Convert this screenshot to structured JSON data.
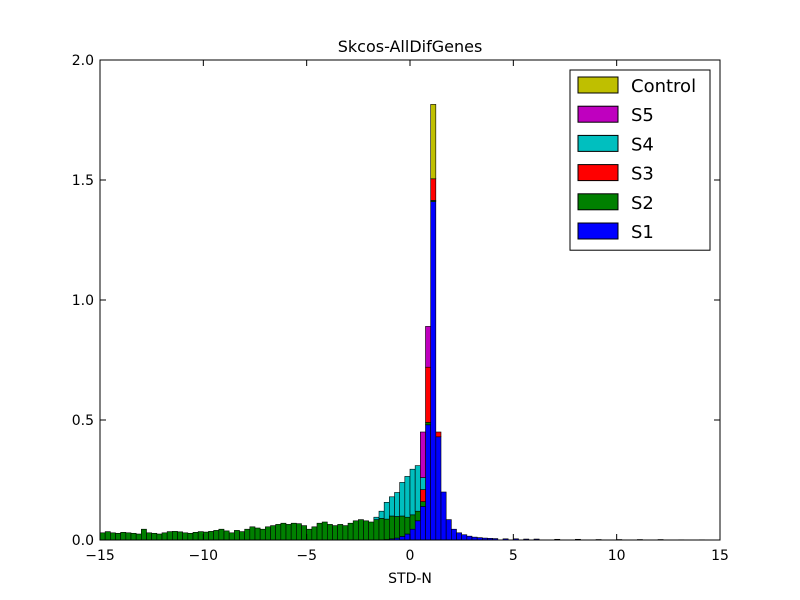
{
  "chart_data": {
    "type": "histogram",
    "title": "Skcos-AllDifGenes",
    "xlabel": "STD-N",
    "ylabel": "",
    "xlim": [
      -15,
      15
    ],
    "ylim": [
      0,
      2.0
    ],
    "x_ticks": [
      -15,
      -10,
      -5,
      0,
      5,
      10,
      15
    ],
    "x_tick_labels": [
      "−15",
      "−10",
      "−5",
      "0",
      "5",
      "10",
      "15"
    ],
    "y_ticks": [
      0,
      0.5,
      1.0,
      1.5,
      2.0
    ],
    "y_tick_labels": [
      "0.0",
      "0.5",
      "1.0",
      "1.5",
      "2.0"
    ],
    "legend_position": "top-right",
    "bin_width": 0.25,
    "series": [
      {
        "name": "S1",
        "color": "#0000ff",
        "bins": [
          [
            -1.25,
            0.002
          ],
          [
            -1.0,
            0.005
          ],
          [
            -0.75,
            0.008
          ],
          [
            -0.5,
            0.015
          ],
          [
            -0.25,
            0.025
          ],
          [
            0.0,
            0.045
          ],
          [
            0.25,
            0.08
          ],
          [
            0.5,
            0.14
          ],
          [
            0.75,
            0.48
          ],
          [
            1.0,
            1.41
          ],
          [
            1.25,
            0.43
          ],
          [
            1.5,
            0.2
          ],
          [
            1.75,
            0.085
          ],
          [
            2.0,
            0.045
          ],
          [
            2.25,
            0.03
          ],
          [
            2.5,
            0.022
          ],
          [
            2.75,
            0.016
          ],
          [
            3.0,
            0.012
          ],
          [
            3.25,
            0.01
          ],
          [
            3.5,
            0.008
          ],
          [
            3.75,
            0.007
          ],
          [
            4.0,
            0.006
          ],
          [
            4.5,
            0.005
          ],
          [
            5.0,
            0.005
          ],
          [
            5.5,
            0.004
          ],
          [
            6.0,
            0.004
          ],
          [
            7.0,
            0.003
          ],
          [
            8.0,
            0.003
          ],
          [
            9.0,
            0.002
          ],
          [
            10.0,
            0.002
          ],
          [
            11.0,
            0.002
          ],
          [
            12.0,
            0.002
          ],
          [
            13.0,
            0.001
          ],
          [
            14.0,
            0.001
          ]
        ]
      },
      {
        "name": "S2",
        "color": "#008000",
        "bins": [
          [
            -15.0,
            0.03
          ],
          [
            -14.75,
            0.035
          ],
          [
            -14.5,
            0.03
          ],
          [
            -14.25,
            0.028
          ],
          [
            -14.0,
            0.032
          ],
          [
            -13.75,
            0.03
          ],
          [
            -13.5,
            0.028
          ],
          [
            -13.25,
            0.025
          ],
          [
            -13.0,
            0.045
          ],
          [
            -12.75,
            0.03
          ],
          [
            -12.5,
            0.028
          ],
          [
            -12.25,
            0.025
          ],
          [
            -12.0,
            0.03
          ],
          [
            -11.75,
            0.035
          ],
          [
            -11.5,
            0.036
          ],
          [
            -11.25,
            0.034
          ],
          [
            -11.0,
            0.03
          ],
          [
            -10.75,
            0.028
          ],
          [
            -10.5,
            0.032
          ],
          [
            -10.25,
            0.035
          ],
          [
            -10.0,
            0.033
          ],
          [
            -9.75,
            0.036
          ],
          [
            -9.5,
            0.04
          ],
          [
            -9.25,
            0.045
          ],
          [
            -9.0,
            0.038
          ],
          [
            -8.75,
            0.03
          ],
          [
            -8.5,
            0.04
          ],
          [
            -8.25,
            0.035
          ],
          [
            -8.0,
            0.045
          ],
          [
            -7.75,
            0.055
          ],
          [
            -7.5,
            0.05
          ],
          [
            -7.25,
            0.045
          ],
          [
            -7.0,
            0.055
          ],
          [
            -6.75,
            0.06
          ],
          [
            -6.5,
            0.065
          ],
          [
            -6.25,
            0.07
          ],
          [
            -6.0,
            0.065
          ],
          [
            -5.75,
            0.07
          ],
          [
            -5.5,
            0.068
          ],
          [
            -5.25,
            0.06
          ],
          [
            -5.0,
            0.045
          ],
          [
            -4.75,
            0.055
          ],
          [
            -4.5,
            0.07
          ],
          [
            -4.25,
            0.075
          ],
          [
            -4.0,
            0.065
          ],
          [
            -3.75,
            0.06
          ],
          [
            -3.5,
            0.065
          ],
          [
            -3.25,
            0.06
          ],
          [
            -3.0,
            0.07
          ],
          [
            -2.75,
            0.08
          ],
          [
            -2.5,
            0.085
          ],
          [
            -2.25,
            0.08
          ],
          [
            -2.0,
            0.075
          ],
          [
            -1.75,
            0.085
          ],
          [
            -1.5,
            0.09
          ],
          [
            -1.25,
            0.085
          ],
          [
            -1.0,
            0.095
          ],
          [
            -0.75,
            0.09
          ],
          [
            -0.5,
            0.085
          ],
          [
            -0.25,
            0.07
          ],
          [
            0.0,
            0.06
          ],
          [
            0.25,
            0.04
          ],
          [
            0.5,
            0.02
          ],
          [
            0.75,
            0.01
          ],
          [
            1.0,
            0.005
          ]
        ]
      },
      {
        "name": "S3",
        "color": "#ff0000",
        "bins": [
          [
            0.5,
            0.05
          ],
          [
            0.75,
            0.23
          ],
          [
            1.0,
            0.09
          ],
          [
            1.25,
            0.02
          ]
        ]
      },
      {
        "name": "S4",
        "color": "#00bfbf",
        "bins": [
          [
            -1.75,
            0.01
          ],
          [
            -1.5,
            0.03
          ],
          [
            -1.25,
            0.07
          ],
          [
            -1.0,
            0.08
          ],
          [
            -0.75,
            0.1
          ],
          [
            -0.5,
            0.14
          ],
          [
            -0.25,
            0.17
          ],
          [
            0.0,
            0.19
          ],
          [
            0.25,
            0.19
          ],
          [
            0.5,
            0.05
          ]
        ]
      },
      {
        "name": "S5",
        "color": "#bf00bf",
        "bins": [
          [
            0.5,
            0.19
          ],
          [
            0.75,
            0.17
          ]
        ]
      },
      {
        "name": "Control",
        "color": "#bfbf00",
        "bins": [
          [
            1.0,
            0.31
          ]
        ]
      }
    ],
    "legend": [
      {
        "label": "Control",
        "color": "#bfbf00"
      },
      {
        "label": "S5",
        "color": "#bf00bf"
      },
      {
        "label": "S4",
        "color": "#00bfbf"
      },
      {
        "label": "S3",
        "color": "#ff0000"
      },
      {
        "label": "S2",
        "color": "#008000"
      },
      {
        "label": "S1",
        "color": "#0000ff"
      }
    ]
  }
}
